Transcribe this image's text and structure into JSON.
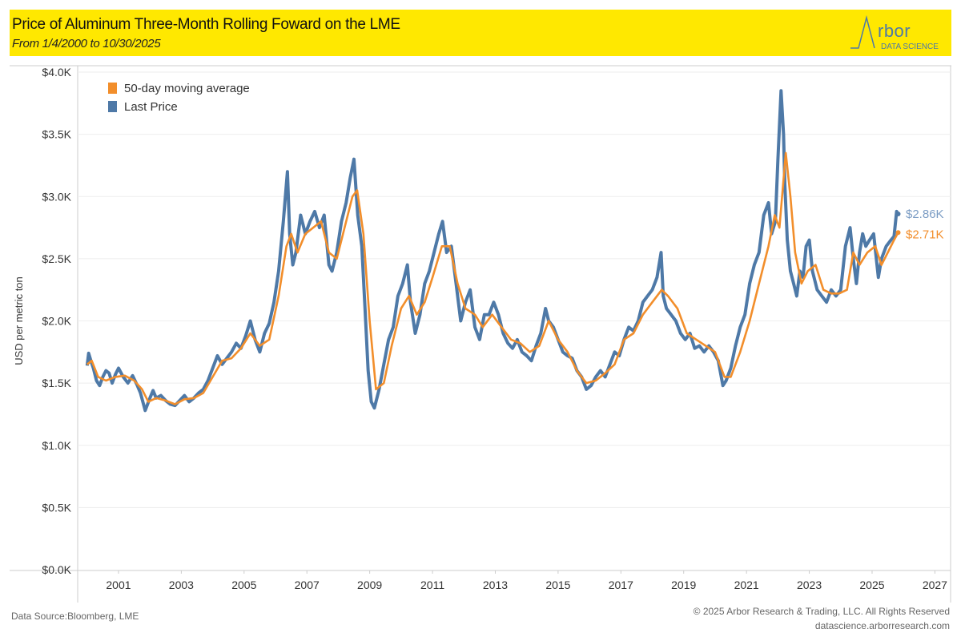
{
  "header": {
    "title": "Price of Aluminum Three-Month Rolling Foward on the LME",
    "subtitle": "From 1/4/2000 to 10/30/2025",
    "logo_text": "Arbor",
    "logo_subtext": "DATA SCIENCE"
  },
  "footer": {
    "source": "Data Source:Bloomberg, LME",
    "copyright": "© 2025 Arbor Research & Trading, LLC. All Rights Reserved",
    "website": "datascience.arborresearch.com"
  },
  "colors": {
    "last_price": "#4e79a7",
    "moving_average": "#f28e2b",
    "banner": "#ffe800"
  },
  "chart_data": {
    "type": "line",
    "title": "Price of Aluminum Three-Month Rolling Foward on the LME",
    "ylabel": "USD per metric ton",
    "xlabel": "",
    "ylim": [
      0,
      4000
    ],
    "xlim": [
      1999.7,
      2027.5
    ],
    "y_ticks": [
      "$0.0K",
      "$0.5K",
      "$1.0K",
      "$1.5K",
      "$2.0K",
      "$2.5K",
      "$3.0K",
      "$3.5K",
      "$4.0K"
    ],
    "x_ticks": [
      "2001",
      "2003",
      "2005",
      "2007",
      "2009",
      "2011",
      "2013",
      "2015",
      "2017",
      "2019",
      "2021",
      "2023",
      "2025",
      "2027"
    ],
    "grid": true,
    "legend_position": "top-left",
    "end_labels": {
      "last_price": "$2.86K",
      "moving_average": "$2.71K"
    },
    "series": [
      {
        "name": "50-day moving average",
        "color": "#f28e2b",
        "x": [
          2000.0,
          2000.15,
          2000.35,
          2000.6,
          2000.9,
          2001.2,
          2001.5,
          2001.75,
          2001.95,
          2002.2,
          2002.5,
          2002.8,
          2003.1,
          2003.4,
          2003.7,
          2004.0,
          2004.3,
          2004.6,
          2004.9,
          2005.2,
          2005.5,
          2005.8,
          2006.1,
          2006.35,
          2006.5,
          2006.7,
          2006.95,
          2007.2,
          2007.45,
          2007.7,
          2007.95,
          2008.2,
          2008.45,
          2008.6,
          2008.8,
          2009.0,
          2009.2,
          2009.45,
          2009.7,
          2010.0,
          2010.25,
          2010.5,
          2010.75,
          2011.0,
          2011.3,
          2011.55,
          2011.8,
          2012.05,
          2012.35,
          2012.6,
          2012.9,
          2013.2,
          2013.5,
          2013.8,
          2014.1,
          2014.4,
          2014.7,
          2015.0,
          2015.3,
          2015.6,
          2015.9,
          2016.2,
          2016.5,
          2016.8,
          2017.1,
          2017.4,
          2017.7,
          2018.0,
          2018.3,
          2018.5,
          2018.8,
          2019.1,
          2019.4,
          2019.7,
          2020.0,
          2020.3,
          2020.5,
          2020.8,
          2021.1,
          2021.4,
          2021.7,
          2021.9,
          2022.05,
          2022.25,
          2022.4,
          2022.55,
          2022.75,
          2022.95,
          2023.2,
          2023.45,
          2023.7,
          2023.95,
          2024.2,
          2024.4,
          2024.6,
          2024.85,
          2025.1,
          2025.3,
          2025.5,
          2025.7,
          2025.83
        ],
        "values": [
          1.65,
          1.68,
          1.55,
          1.52,
          1.55,
          1.56,
          1.52,
          1.45,
          1.35,
          1.38,
          1.36,
          1.33,
          1.37,
          1.38,
          1.42,
          1.55,
          1.68,
          1.7,
          1.78,
          1.9,
          1.8,
          1.85,
          2.2,
          2.6,
          2.7,
          2.55,
          2.7,
          2.75,
          2.8,
          2.55,
          2.5,
          2.75,
          3.0,
          3.05,
          2.7,
          2.0,
          1.45,
          1.5,
          1.8,
          2.1,
          2.2,
          2.05,
          2.15,
          2.35,
          2.6,
          2.6,
          2.3,
          2.1,
          2.05,
          1.95,
          2.05,
          1.95,
          1.85,
          1.82,
          1.75,
          1.8,
          2.0,
          1.85,
          1.75,
          1.6,
          1.5,
          1.52,
          1.58,
          1.65,
          1.85,
          1.9,
          2.05,
          2.15,
          2.25,
          2.2,
          2.1,
          1.9,
          1.85,
          1.8,
          1.75,
          1.55,
          1.55,
          1.75,
          2.0,
          2.3,
          2.6,
          2.85,
          2.75,
          3.35,
          3.0,
          2.55,
          2.3,
          2.4,
          2.45,
          2.25,
          2.22,
          2.22,
          2.25,
          2.55,
          2.45,
          2.55,
          2.6,
          2.45,
          2.55,
          2.65,
          2.71
        ]
      },
      {
        "name": "Last Price",
        "color": "#4e79a7",
        "x": [
          2000.0,
          2000.05,
          2000.12,
          2000.2,
          2000.3,
          2000.4,
          2000.5,
          2000.6,
          2000.7,
          2000.8,
          2000.9,
          2001.0,
          2001.15,
          2001.3,
          2001.45,
          2001.6,
          2001.7,
          2001.85,
          2002.0,
          2002.1,
          2002.2,
          2002.35,
          2002.5,
          2002.65,
          2002.8,
          2002.95,
          2003.1,
          2003.25,
          2003.4,
          2003.55,
          2003.7,
          2003.85,
          2004.0,
          2004.15,
          2004.3,
          2004.45,
          2004.6,
          2004.75,
          2004.9,
          2005.05,
          2005.2,
          2005.35,
          2005.5,
          2005.65,
          2005.8,
          2005.95,
          2006.1,
          2006.25,
          2006.38,
          2006.45,
          2006.55,
          2006.65,
          2006.8,
          2006.95,
          2007.1,
          2007.25,
          2007.4,
          2007.55,
          2007.7,
          2007.8,
          2007.95,
          2008.1,
          2008.25,
          2008.38,
          2008.5,
          2008.62,
          2008.75,
          2008.85,
          2008.95,
          2009.05,
          2009.15,
          2009.3,
          2009.45,
          2009.6,
          2009.75,
          2009.9,
          2010.05,
          2010.2,
          2010.3,
          2010.45,
          2010.6,
          2010.75,
          2010.9,
          2011.05,
          2011.2,
          2011.32,
          2011.45,
          2011.6,
          2011.75,
          2011.9,
          2012.05,
          2012.2,
          2012.35,
          2012.5,
          2012.65,
          2012.8,
          2012.95,
          2013.1,
          2013.25,
          2013.4,
          2013.55,
          2013.7,
          2013.85,
          2014.0,
          2014.15,
          2014.3,
          2014.45,
          2014.6,
          2014.7,
          2014.85,
          2015.0,
          2015.15,
          2015.3,
          2015.45,
          2015.6,
          2015.75,
          2015.9,
          2016.05,
          2016.2,
          2016.35,
          2016.5,
          2016.65,
          2016.8,
          2016.95,
          2017.1,
          2017.25,
          2017.4,
          2017.55,
          2017.7,
          2017.85,
          2018.0,
          2018.15,
          2018.28,
          2018.35,
          2018.45,
          2018.6,
          2018.75,
          2018.9,
          2019.05,
          2019.2,
          2019.35,
          2019.5,
          2019.65,
          2019.8,
          2019.95,
          2020.1,
          2020.25,
          2020.35,
          2020.5,
          2020.65,
          2020.8,
          2020.95,
          2021.1,
          2021.25,
          2021.4,
          2021.55,
          2021.7,
          2021.8,
          2021.92,
          2022.0,
          2022.1,
          2022.18,
          2022.22,
          2022.3,
          2022.4,
          2022.5,
          2022.6,
          2022.7,
          2022.8,
          2022.9,
          2023.0,
          2023.1,
          2023.25,
          2023.4,
          2023.55,
          2023.7,
          2023.85,
          2024.0,
          2024.15,
          2024.3,
          2024.4,
          2024.5,
          2024.6,
          2024.7,
          2024.8,
          2024.92,
          2025.05,
          2025.2,
          2025.3,
          2025.45,
          2025.6,
          2025.7,
          2025.78,
          2025.83
        ],
        "values": [
          1.64,
          1.74,
          1.68,
          1.62,
          1.52,
          1.48,
          1.55,
          1.6,
          1.58,
          1.5,
          1.57,
          1.62,
          1.55,
          1.5,
          1.56,
          1.48,
          1.42,
          1.28,
          1.38,
          1.44,
          1.38,
          1.4,
          1.36,
          1.33,
          1.32,
          1.36,
          1.4,
          1.35,
          1.38,
          1.42,
          1.45,
          1.52,
          1.62,
          1.72,
          1.65,
          1.7,
          1.75,
          1.82,
          1.78,
          1.88,
          2.0,
          1.85,
          1.75,
          1.9,
          1.98,
          2.15,
          2.4,
          2.8,
          3.2,
          2.7,
          2.45,
          2.55,
          2.85,
          2.7,
          2.8,
          2.88,
          2.75,
          2.85,
          2.45,
          2.4,
          2.55,
          2.8,
          2.95,
          3.15,
          3.3,
          2.85,
          2.6,
          2.1,
          1.6,
          1.35,
          1.3,
          1.45,
          1.65,
          1.85,
          1.95,
          2.2,
          2.3,
          2.45,
          2.15,
          1.9,
          2.05,
          2.3,
          2.4,
          2.55,
          2.7,
          2.8,
          2.55,
          2.6,
          2.3,
          2.0,
          2.15,
          2.25,
          1.95,
          1.85,
          2.05,
          2.05,
          2.15,
          2.05,
          1.9,
          1.82,
          1.78,
          1.85,
          1.75,
          1.72,
          1.68,
          1.8,
          1.9,
          2.1,
          2.0,
          1.95,
          1.85,
          1.75,
          1.72,
          1.7,
          1.6,
          1.55,
          1.45,
          1.48,
          1.55,
          1.6,
          1.55,
          1.65,
          1.75,
          1.72,
          1.85,
          1.95,
          1.92,
          2.0,
          2.15,
          2.2,
          2.25,
          2.35,
          2.55,
          2.2,
          2.1,
          2.05,
          2.0,
          1.9,
          1.85,
          1.9,
          1.78,
          1.8,
          1.75,
          1.8,
          1.75,
          1.68,
          1.48,
          1.52,
          1.62,
          1.8,
          1.95,
          2.05,
          2.3,
          2.45,
          2.55,
          2.85,
          2.95,
          2.7,
          2.8,
          3.3,
          3.85,
          3.5,
          3.1,
          2.65,
          2.4,
          2.3,
          2.2,
          2.4,
          2.35,
          2.6,
          2.65,
          2.4,
          2.25,
          2.2,
          2.15,
          2.25,
          2.2,
          2.25,
          2.6,
          2.75,
          2.5,
          2.3,
          2.55,
          2.7,
          2.6,
          2.65,
          2.7,
          2.35,
          2.5,
          2.6,
          2.65,
          2.68,
          2.88,
          2.86
        ]
      }
    ]
  }
}
